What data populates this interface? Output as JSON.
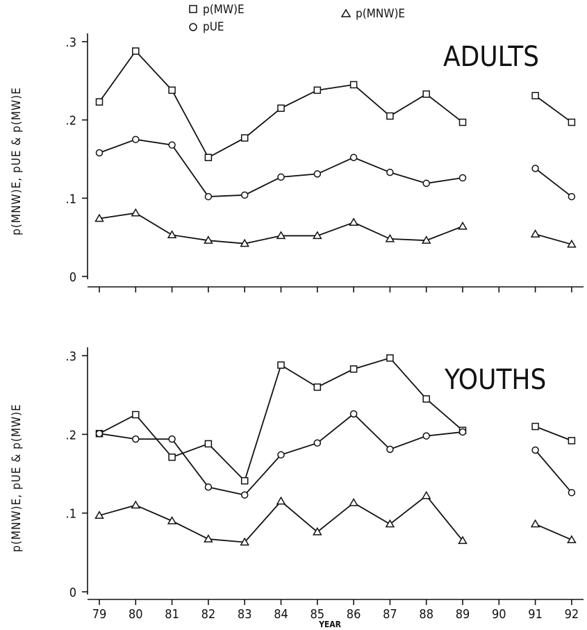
{
  "legend": {
    "items": [
      {
        "label": "p(MW)E",
        "marker": "square"
      },
      {
        "label": "pUE",
        "marker": "circle"
      },
      {
        "label": "p(MNW)E",
        "marker": "triangle"
      }
    ]
  },
  "chart_data": [
    {
      "type": "line",
      "title": "ADULTS",
      "xlabel": "",
      "ylabel": "p(MNW)E, pUE & p(MW)E",
      "ylim": [
        0,
        0.3
      ],
      "yticks": [
        "0",
        ".1",
        ".2",
        ".3"
      ],
      "x": [
        79,
        80,
        81,
        82,
        83,
        84,
        85,
        86,
        87,
        88,
        89,
        90,
        91,
        92
      ],
      "x_ticks_shown": [],
      "gap_between": [
        89,
        91
      ],
      "series": [
        {
          "name": "p(MW)E",
          "marker": "square",
          "values": [
            0.223,
            0.288,
            0.238,
            0.152,
            0.177,
            0.215,
            0.238,
            0.245,
            0.205,
            0.233,
            0.197,
            null,
            0.231,
            0.197
          ]
        },
        {
          "name": "pUE",
          "marker": "circle",
          "values": [
            0.158,
            0.175,
            0.168,
            0.102,
            0.104,
            0.127,
            0.131,
            0.152,
            0.133,
            0.119,
            0.126,
            null,
            0.138,
            0.102
          ]
        },
        {
          "name": "p(MNW)E",
          "marker": "triangle",
          "values": [
            0.074,
            0.081,
            0.053,
            0.046,
            0.042,
            0.052,
            0.052,
            0.069,
            0.048,
            0.046,
            0.064,
            null,
            0.054,
            0.041
          ]
        }
      ]
    },
    {
      "type": "line",
      "title": "YOUTHS",
      "xlabel": "YEAR",
      "ylabel": "p(MNW)E, pUE & p(MW)E",
      "ylim": [
        0,
        0.3
      ],
      "yticks": [
        "0",
        ".1",
        ".2",
        ".3"
      ],
      "x": [
        79,
        80,
        81,
        82,
        83,
        84,
        85,
        86,
        87,
        88,
        89,
        90,
        91,
        92
      ],
      "x_ticks_shown": [
        "79",
        "80",
        "81",
        "82",
        "83",
        "84",
        "85",
        "86",
        "87",
        "88",
        "89",
        "90",
        "91",
        "92"
      ],
      "gap_between": [
        89,
        91
      ],
      "series": [
        {
          "name": "p(MW)E",
          "marker": "square",
          "values": [
            0.201,
            0.225,
            0.171,
            0.188,
            0.141,
            0.288,
            0.26,
            0.283,
            0.297,
            0.245,
            0.205,
            null,
            0.21,
            0.192
          ]
        },
        {
          "name": "pUE",
          "marker": "circle",
          "values": [
            0.201,
            0.194,
            0.194,
            0.133,
            0.123,
            0.174,
            0.189,
            0.226,
            0.181,
            0.198,
            0.203,
            null,
            0.18,
            0.126
          ]
        },
        {
          "name": "p(MNW)E",
          "marker": "triangle",
          "values": [
            0.097,
            0.11,
            0.09,
            0.067,
            0.063,
            0.115,
            0.076,
            0.113,
            0.086,
            0.122,
            0.065,
            null,
            0.086,
            0.066
          ]
        }
      ]
    }
  ]
}
